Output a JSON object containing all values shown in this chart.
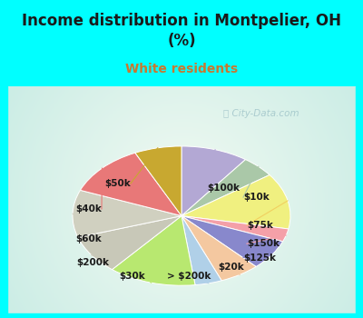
{
  "title": "Income distribution in Montpelier, OH\n(%)",
  "subtitle": "White residents",
  "labels": [
    "$100k",
    "$10k",
    "$75k",
    "$150k",
    "$125k",
    "$20k",
    "> $200k",
    "$30k",
    "$200k",
    "$60k",
    "$40k",
    "$50k"
  ],
  "values": [
    10,
    5,
    13,
    3,
    7,
    6,
    4,
    13,
    9,
    11,
    12,
    7
  ],
  "colors": [
    "#b3a8d4",
    "#aac8a8",
    "#f0f080",
    "#f4a0a8",
    "#8888cc",
    "#f4c8a0",
    "#b0d0e8",
    "#b8e870",
    "#c8c8b8",
    "#d0d0c0",
    "#e87878",
    "#c8a830"
  ],
  "title_color": "#1a1a1a",
  "subtitle_color": "#c87830",
  "watermark": "City-Data.com",
  "bg_top_color": "#00ffff",
  "chart_bg_color": "#e0f5ee",
  "label_line_colors": [
    "#b3a8d4",
    "#aac8a8",
    "#f0d060",
    "#f4a0a8",
    "#8888cc",
    "#f4c8a0",
    "#b0d0e8",
    "#b8e870",
    "#c8c8b8",
    "#d0d0c0",
    "#e87878",
    "#c8a830"
  ]
}
